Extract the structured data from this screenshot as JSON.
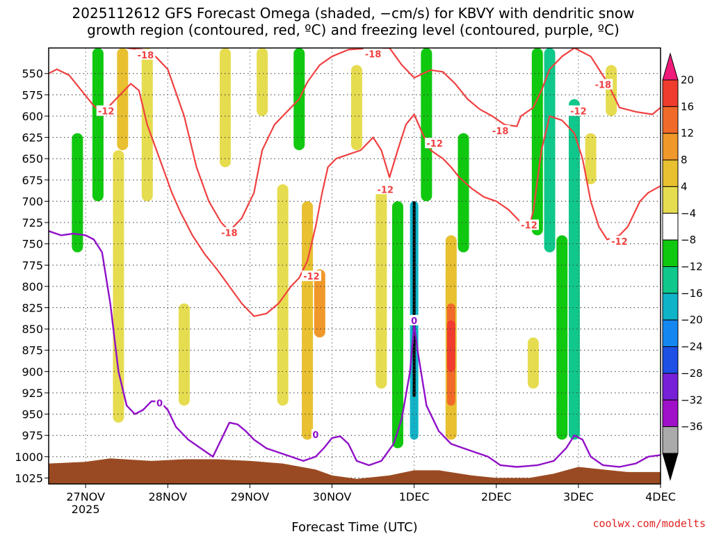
{
  "chart_data": {
    "type": "heatmap",
    "title_line1": "2025112612 GFS Forecast Omega (shaded, −cm/s) for KBVY with dendritic snow",
    "title_line2": "growth region (contoured, red, ºC) and freezing level (contoured, purple, ºC)",
    "xlabel": "Forecast Time (UTC)",
    "credit": "coolwx.com/modelts",
    "x_range_days": [
      -0.45,
      7.0
    ],
    "x_ticks": [
      {
        "day": 0,
        "label": "27NOV",
        "sub": "2025"
      },
      {
        "day": 1,
        "label": "28NOV",
        "sub": ""
      },
      {
        "day": 2,
        "label": "29NOV",
        "sub": ""
      },
      {
        "day": 3,
        "label": "30NOV",
        "sub": ""
      },
      {
        "day": 4,
        "label": "1DEC",
        "sub": ""
      },
      {
        "day": 5,
        "label": "2DEC",
        "sub": ""
      },
      {
        "day": 6,
        "label": "3DEC",
        "sub": ""
      },
      {
        "day": 7,
        "label": "4DEC",
        "sub": ""
      }
    ],
    "y_range_hpa": [
      520,
      1032
    ],
    "y_ticks": [
      "550",
      "575",
      "600",
      "625",
      "650",
      "675",
      "700",
      "725",
      "750",
      "775",
      "800",
      "825",
      "850",
      "875",
      "900",
      "925",
      "950",
      "975",
      "1000",
      "1025"
    ],
    "colorbar": {
      "ticks": [
        "20",
        "16",
        "12",
        "8",
        "4",
        "−4",
        "−8",
        "−12",
        "−16",
        "−20",
        "−24",
        "−28",
        "−32",
        "−36"
      ],
      "colors": [
        "#f01a7a",
        "#f03c2e",
        "#f26a2a",
        "#f0982a",
        "#e8c030",
        "#e6dc50",
        "#ffffff",
        "#10c810",
        "#10c88c",
        "#10b4c8",
        "#1488f0",
        "#1e50e6",
        "#7820d8",
        "#a010c8",
        "#aaaaaa",
        "#000000"
      ]
    },
    "omega_areas": [
      {
        "day": -0.1,
        "p_top": 620,
        "p_bot": 760,
        "value": -6
      },
      {
        "day": 0.15,
        "p_top": 520,
        "p_bot": 700,
        "value": -6
      },
      {
        "day": 0.45,
        "p_top": 520,
        "p_bot": 640,
        "value": 6
      },
      {
        "day": 0.4,
        "p_top": 640,
        "p_bot": 960,
        "value": 5
      },
      {
        "day": 0.75,
        "p_top": 520,
        "p_bot": 700,
        "value": 5
      },
      {
        "day": 1.2,
        "p_top": 820,
        "p_bot": 940,
        "value": 5
      },
      {
        "day": 1.7,
        "p_top": 520,
        "p_bot": 660,
        "value": 5
      },
      {
        "day": 2.15,
        "p_top": 520,
        "p_bot": 600,
        "value": 5
      },
      {
        "day": 2.4,
        "p_top": 680,
        "p_bot": 940,
        "value": 5
      },
      {
        "day": 2.7,
        "p_top": 700,
        "p_bot": 980,
        "value": 6
      },
      {
        "day": 2.85,
        "p_top": 780,
        "p_bot": 860,
        "value": 10
      },
      {
        "day": 2.6,
        "p_top": 520,
        "p_bot": 640,
        "value": -6
      },
      {
        "day": 3.3,
        "p_top": 540,
        "p_bot": 640,
        "value": 5
      },
      {
        "day": 3.6,
        "p_top": 680,
        "p_bot": 920,
        "value": 5
      },
      {
        "day": 3.8,
        "p_top": 700,
        "p_bot": 990,
        "value": -6
      },
      {
        "day": 4.0,
        "p_top": 700,
        "p_bot": 980,
        "value": -12
      },
      {
        "day": 4.0,
        "p_top": 700,
        "p_bot": 930,
        "value": -36
      },
      {
        "day": 4.15,
        "p_top": 520,
        "p_bot": 700,
        "value": -6
      },
      {
        "day": 4.45,
        "p_top": 740,
        "p_bot": 980,
        "value": 6
      },
      {
        "day": 4.45,
        "p_top": 820,
        "p_bot": 940,
        "value": 12
      },
      {
        "day": 4.45,
        "p_top": 840,
        "p_bot": 900,
        "value": 18
      },
      {
        "day": 4.6,
        "p_top": 620,
        "p_bot": 760,
        "value": -6
      },
      {
        "day": 5.5,
        "p_top": 520,
        "p_bot": 740,
        "value": -6
      },
      {
        "day": 5.65,
        "p_top": 520,
        "p_bot": 760,
        "value": -10
      },
      {
        "day": 5.95,
        "p_top": 580,
        "p_bot": 980,
        "value": -10
      },
      {
        "day": 5.8,
        "p_top": 740,
        "p_bot": 980,
        "value": -6
      },
      {
        "day": 6.15,
        "p_top": 620,
        "p_bot": 680,
        "value": 5
      },
      {
        "day": 6.4,
        "p_top": 540,
        "p_bot": 600,
        "value": 5
      },
      {
        "day": 5.45,
        "p_top": 860,
        "p_bot": 920,
        "value": 5
      }
    ],
    "dgz_contours": [
      {
        "name": "-12 upper",
        "color": "#f04040",
        "points": [
          [
            -0.45,
            550
          ],
          [
            -0.35,
            545
          ],
          [
            -0.2,
            552
          ],
          [
            -0.05,
            570
          ],
          [
            0.1,
            588
          ],
          [
            0.2,
            597
          ],
          [
            0.35,
            582
          ],
          [
            0.55,
            562
          ],
          [
            0.65,
            570
          ],
          [
            0.75,
            610
          ],
          [
            0.9,
            650
          ],
          [
            1.05,
            690
          ],
          [
            1.15,
            712
          ],
          [
            1.3,
            740
          ],
          [
            1.45,
            762
          ],
          [
            1.6,
            780
          ],
          [
            1.75,
            800
          ],
          [
            1.9,
            820
          ],
          [
            2.05,
            835
          ],
          [
            2.2,
            832
          ],
          [
            2.35,
            820
          ],
          [
            2.5,
            800
          ],
          [
            2.6,
            790
          ],
          [
            2.7,
            770
          ],
          [
            2.8,
            730
          ],
          [
            2.88,
            690
          ],
          [
            2.95,
            660
          ],
          [
            3.05,
            650
          ],
          [
            3.2,
            645
          ],
          [
            3.35,
            640
          ],
          [
            3.5,
            625
          ],
          [
            3.6,
            640
          ],
          [
            3.7,
            672
          ],
          [
            3.8,
            640
          ],
          [
            3.9,
            610
          ],
          [
            4.0,
            598
          ],
          [
            4.1,
            620
          ],
          [
            4.2,
            640
          ],
          [
            4.35,
            650
          ],
          [
            4.45,
            660
          ],
          [
            4.55,
            672
          ],
          [
            4.7,
            685
          ],
          [
            4.85,
            695
          ],
          [
            5.0,
            700
          ],
          [
            5.15,
            710
          ],
          [
            5.3,
            725
          ],
          [
            5.4,
            730
          ],
          [
            5.45,
            712
          ],
          [
            5.55,
            640
          ],
          [
            5.65,
            600
          ],
          [
            5.8,
            605
          ],
          [
            5.95,
            620
          ],
          [
            6.05,
            650
          ],
          [
            6.15,
            700
          ],
          [
            6.25,
            730
          ],
          [
            6.35,
            745
          ],
          [
            6.5,
            740
          ],
          [
            6.6,
            730
          ],
          [
            6.75,
            700
          ],
          [
            6.85,
            690
          ],
          [
            7.0,
            682
          ]
        ]
      },
      {
        "name": "-18 upper",
        "color": "#f04040",
        "points": [
          [
            0.5,
            520
          ],
          [
            0.7,
            522
          ],
          [
            0.85,
            530
          ],
          [
            1.0,
            545
          ],
          [
            1.2,
            600
          ],
          [
            1.35,
            660
          ],
          [
            1.5,
            700
          ],
          [
            1.65,
            725
          ],
          [
            1.75,
            735
          ],
          [
            1.9,
            720
          ],
          [
            2.05,
            690
          ],
          [
            2.15,
            640
          ],
          [
            2.3,
            610
          ],
          [
            2.5,
            590
          ],
          [
            2.6,
            580
          ],
          [
            2.7,
            560
          ],
          [
            2.85,
            540
          ],
          [
            3.0,
            530
          ],
          [
            3.2,
            522
          ],
          [
            3.5,
            520
          ],
          [
            3.7,
            520
          ],
          [
            3.85,
            540
          ],
          [
            4.0,
            555
          ],
          [
            4.2,
            546
          ],
          [
            4.35,
            548
          ],
          [
            4.5,
            562
          ],
          [
            4.65,
            580
          ],
          [
            4.8,
            592
          ],
          [
            4.95,
            600
          ],
          [
            5.1,
            610
          ],
          [
            5.25,
            612
          ],
          [
            5.3,
            600
          ],
          [
            5.45,
            590
          ],
          [
            5.55,
            570
          ],
          [
            5.65,
            545
          ],
          [
            5.8,
            530
          ],
          [
            5.95,
            520
          ],
          [
            6.15,
            530
          ],
          [
            6.35,
            560
          ],
          [
            6.5,
            590
          ],
          [
            6.7,
            595
          ],
          [
            6.9,
            598
          ],
          [
            7.0,
            590
          ]
        ]
      }
    ],
    "freezing_level": {
      "color": "#9010c8",
      "points": [
        [
          -0.45,
          735
        ],
        [
          -0.3,
          740
        ],
        [
          -0.15,
          738
        ],
        [
          0.0,
          740
        ],
        [
          0.1,
          745
        ],
        [
          0.2,
          760
        ],
        [
          0.3,
          820
        ],
        [
          0.4,
          900
        ],
        [
          0.5,
          940
        ],
        [
          0.6,
          950
        ],
        [
          0.7,
          945
        ],
        [
          0.8,
          935
        ],
        [
          0.9,
          935
        ],
        [
          1.0,
          945
        ],
        [
          1.1,
          965
        ],
        [
          1.25,
          980
        ],
        [
          1.4,
          990
        ],
        [
          1.55,
          1000
        ],
        [
          1.65,
          980
        ],
        [
          1.75,
          960
        ],
        [
          1.85,
          962
        ],
        [
          1.95,
          970
        ],
        [
          2.05,
          980
        ],
        [
          2.2,
          990
        ],
        [
          2.35,
          995
        ],
        [
          2.5,
          1000
        ],
        [
          2.65,
          1005
        ],
        [
          2.8,
          1000
        ],
        [
          2.9,
          990
        ],
        [
          3.0,
          978
        ],
        [
          3.1,
          976
        ],
        [
          3.2,
          985
        ],
        [
          3.3,
          1005
        ],
        [
          3.45,
          1010
        ],
        [
          3.6,
          1005
        ],
        [
          3.75,
          985
        ],
        [
          3.85,
          955
        ],
        [
          3.95,
          900
        ],
        [
          4.0,
          845
        ],
        [
          4.05,
          880
        ],
        [
          4.15,
          940
        ],
        [
          4.3,
          970
        ],
        [
          4.45,
          985
        ],
        [
          4.6,
          990
        ],
        [
          4.75,
          995
        ],
        [
          4.9,
          1000
        ],
        [
          5.05,
          1010
        ],
        [
          5.25,
          1012
        ],
        [
          5.5,
          1010
        ],
        [
          5.7,
          1005
        ],
        [
          5.85,
          990
        ],
        [
          5.95,
          975
        ],
        [
          6.05,
          980
        ],
        [
          6.15,
          1000
        ],
        [
          6.3,
          1010
        ],
        [
          6.5,
          1012
        ],
        [
          6.7,
          1008
        ],
        [
          6.85,
          1000
        ],
        [
          7.0,
          998
        ]
      ]
    },
    "contour_labels": [
      {
        "day": 0.73,
        "p": 528,
        "text": "-18",
        "color": "#f04040"
      },
      {
        "day": 3.5,
        "p": 527,
        "text": "-18",
        "color": "#f04040"
      },
      {
        "day": 6.3,
        "p": 563,
        "text": "-18",
        "color": "#f04040"
      },
      {
        "day": 5.05,
        "p": 617,
        "text": "-18",
        "color": "#f04040"
      },
      {
        "day": 1.75,
        "p": 737,
        "text": "-18",
        "color": "#f04040"
      },
      {
        "day": 0.25,
        "p": 594,
        "text": "-12",
        "color": "#f04040"
      },
      {
        "day": 6.0,
        "p": 594,
        "text": "-12",
        "color": "#f04040"
      },
      {
        "day": 4.25,
        "p": 632,
        "text": "-12",
        "color": "#f04040"
      },
      {
        "day": 3.65,
        "p": 686,
        "text": "-12",
        "color": "#f04040"
      },
      {
        "day": 5.4,
        "p": 728,
        "text": "-12",
        "color": "#f04040"
      },
      {
        "day": 6.5,
        "p": 747,
        "text": "-12",
        "color": "#f04040"
      },
      {
        "day": 2.75,
        "p": 788,
        "text": "-12",
        "color": "#f04040"
      },
      {
        "day": 0.9,
        "p": 937,
        "text": "0",
        "color": "#9010c8"
      },
      {
        "day": 2.8,
        "p": 974,
        "text": "0",
        "color": "#9010c8"
      },
      {
        "day": 4.0,
        "p": 840,
        "text": "0",
        "color": "#9010c8"
      }
    ],
    "terrain_color": "#9a4a22",
    "terrain": [
      [
        -0.45,
        1008
      ],
      [
        0.0,
        1006
      ],
      [
        0.3,
        1002
      ],
      [
        0.8,
        1005
      ],
      [
        1.2,
        1003
      ],
      [
        1.6,
        1003
      ],
      [
        2.0,
        1005
      ],
      [
        2.4,
        1008
      ],
      [
        2.8,
        1015
      ],
      [
        3.0,
        1022
      ],
      [
        3.3,
        1026
      ],
      [
        3.7,
        1022
      ],
      [
        4.0,
        1016
      ],
      [
        4.3,
        1016
      ],
      [
        4.7,
        1022
      ],
      [
        5.0,
        1025
      ],
      [
        5.4,
        1025
      ],
      [
        5.7,
        1020
      ],
      [
        6.0,
        1012
      ],
      [
        6.3,
        1015
      ],
      [
        6.6,
        1018
      ],
      [
        7.0,
        1018
      ]
    ]
  }
}
